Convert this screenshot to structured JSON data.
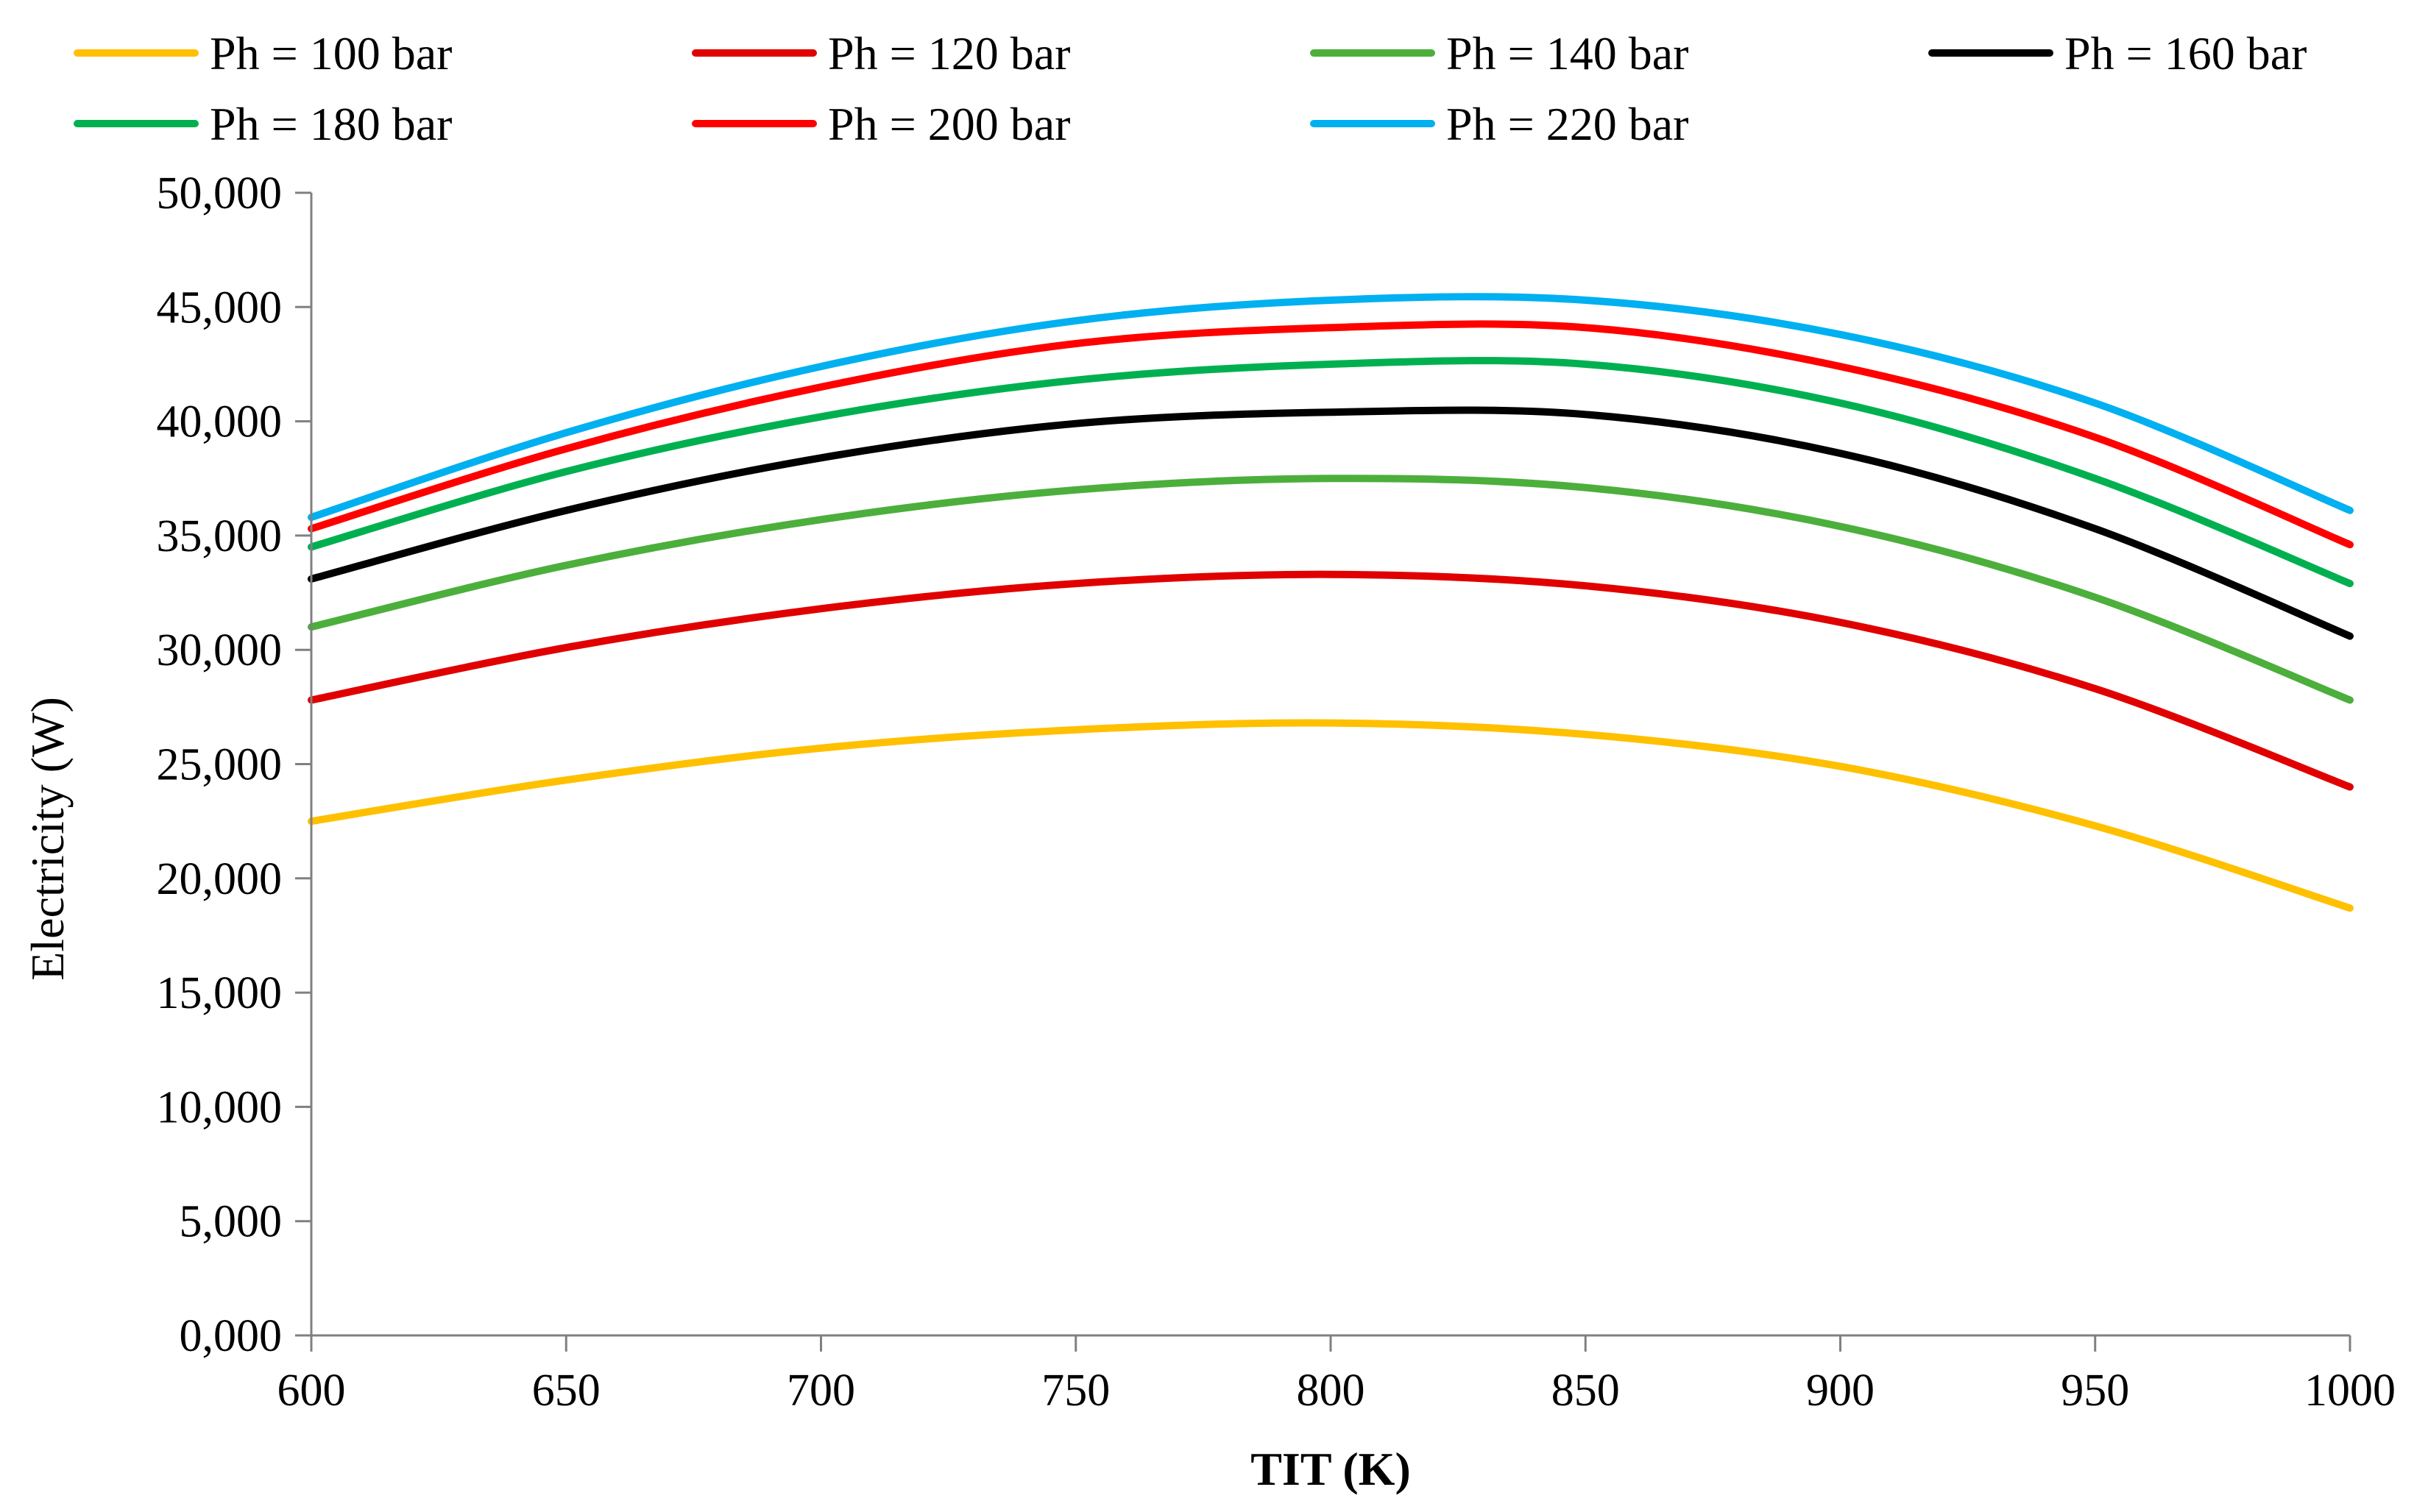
{
  "chart_data": {
    "type": "line",
    "title": "",
    "xlabel": "TIT (K)",
    "ylabel": "Electricity (W)",
    "xlim": [
      600,
      1000
    ],
    "ylim": [
      0,
      50000
    ],
    "grid": false,
    "legend_position": "top",
    "x_ticks": [
      600,
      650,
      700,
      750,
      800,
      850,
      900,
      950,
      1000
    ],
    "x_tick_labels": [
      "600",
      "650",
      "700",
      "750",
      "800",
      "850",
      "900",
      "950",
      "1000"
    ],
    "y_ticks": [
      0,
      5000,
      10000,
      15000,
      20000,
      25000,
      30000,
      35000,
      40000,
      45000,
      50000
    ],
    "y_tick_labels": [
      "0,000",
      "5,000",
      "10,000",
      "15,000",
      "20,000",
      "25,000",
      "30,000",
      "35,000",
      "40,000",
      "45,000",
      "50,000"
    ],
    "x": [
      600,
      650,
      700,
      750,
      800,
      850,
      900,
      950,
      1000
    ],
    "series": [
      {
        "name": "Ph = 100 bar",
        "color": "#FFC000",
        "values": [
          22500,
          24300,
          25700,
          26500,
          26800,
          26300,
          24900,
          22300,
          18700
        ]
      },
      {
        "name": "Ph = 120 bar",
        "color": "#E00000",
        "values": [
          27800,
          30100,
          31800,
          32900,
          33300,
          32800,
          31200,
          28300,
          24000
        ]
      },
      {
        "name": "Ph = 140 bar",
        "color": "#4CAF3C",
        "values": [
          31000,
          33700,
          35700,
          37000,
          37500,
          37100,
          35400,
          32300,
          27800
        ]
      },
      {
        "name": "Ph = 160 bar",
        "color": "#000000",
        "values": [
          33100,
          36100,
          38400,
          39900,
          40400,
          40300,
          38600,
          35300,
          30600
        ]
      },
      {
        "name": "Ph = 180 bar",
        "color": "#00B050",
        "values": [
          34500,
          37800,
          40200,
          41800,
          42500,
          42500,
          40800,
          37500,
          32900
        ]
      },
      {
        "name": "Ph = 200 bar",
        "color": "#FF0000",
        "values": [
          35300,
          38800,
          41500,
          43400,
          44100,
          44100,
          42400,
          39300,
          34600
        ]
      },
      {
        "name": "Ph = 220 bar",
        "color": "#00B0F0",
        "values": [
          35800,
          39500,
          42400,
          44400,
          45300,
          45300,
          43800,
          40800,
          36100
        ]
      }
    ]
  }
}
